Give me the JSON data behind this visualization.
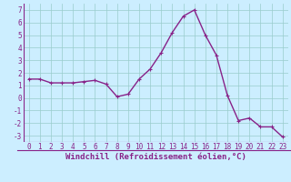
{
  "x": [
    0,
    1,
    2,
    3,
    4,
    5,
    6,
    7,
    8,
    9,
    10,
    11,
    12,
    13,
    14,
    15,
    16,
    17,
    18,
    19,
    20,
    21,
    22,
    23
  ],
  "y": [
    1.5,
    1.5,
    1.2,
    1.2,
    1.2,
    1.3,
    1.4,
    1.1,
    0.1,
    0.3,
    1.5,
    2.3,
    3.6,
    5.2,
    6.5,
    7.0,
    5.0,
    3.4,
    0.2,
    -1.8,
    -1.6,
    -2.3,
    -2.3,
    -3.1
  ],
  "line_color": "#882288",
  "marker": "+",
  "marker_size": 3,
  "bg_color": "#cceeff",
  "grid_color": "#99cccc",
  "xlabel": "Windchill (Refroidissement éolien,°C)",
  "xlim": [
    -0.5,
    23.5
  ],
  "ylim": [
    -3.5,
    7.5
  ],
  "yticks": [
    -3,
    -2,
    -1,
    0,
    1,
    2,
    3,
    4,
    5,
    6,
    7
  ],
  "xticks": [
    0,
    1,
    2,
    3,
    4,
    5,
    6,
    7,
    8,
    9,
    10,
    11,
    12,
    13,
    14,
    15,
    16,
    17,
    18,
    19,
    20,
    21,
    22,
    23
  ],
  "xlabel_fontsize": 6.5,
  "tick_fontsize": 5.5,
  "line_width": 1.0
}
